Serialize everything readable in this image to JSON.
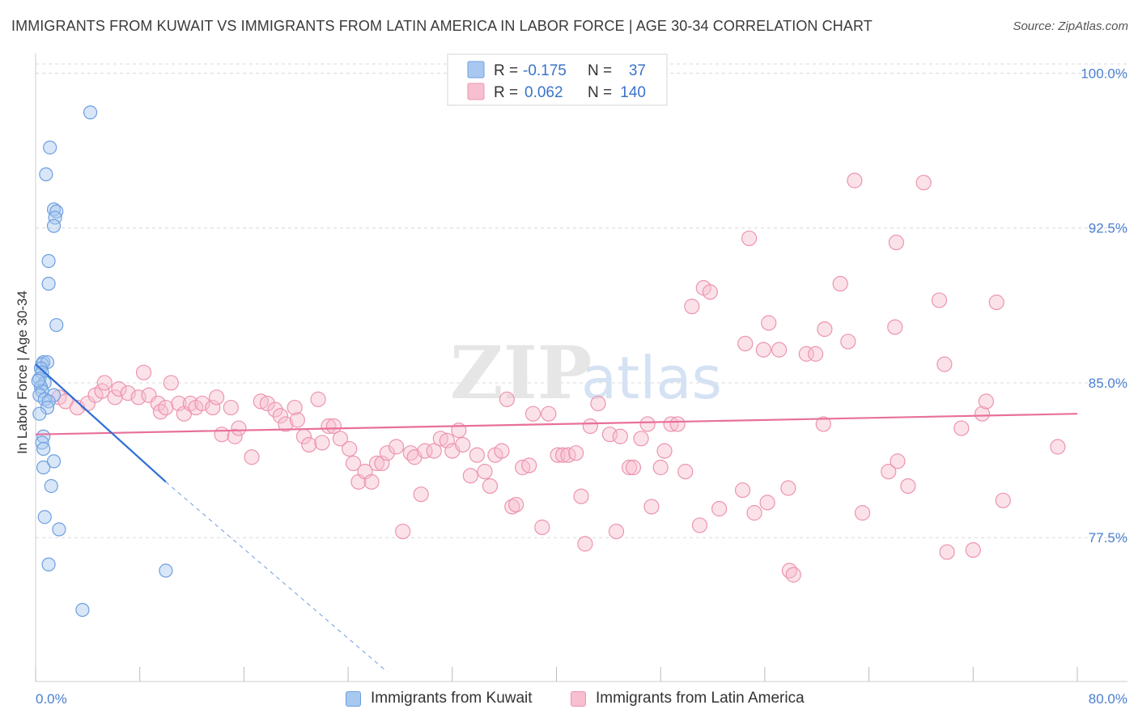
{
  "title": "IMMIGRANTS FROM KUWAIT VS IMMIGRANTS FROM LATIN AMERICA IN LABOR FORCE | AGE 30-34 CORRELATION CHART",
  "source": "Source: ZipAtlas.com",
  "watermark": {
    "zip": "ZIP",
    "atlas": "atlas"
  },
  "colors": {
    "kuwait_fill": "#a9c8f0",
    "kuwait_stroke": "#6c9fe0",
    "kuwait_line": "#2f6fd4",
    "latam_fill": "#f7bfcf",
    "latam_stroke": "#ec94ae",
    "latam_line": "#e8709a",
    "grid": "#d8d8d8",
    "axis_text": "#4a7fd0"
  },
  "legend": {
    "kuwait": {
      "r_label": "R = ",
      "r_value": "-0.175",
      "n_label": "N = ",
      "n_value": "37"
    },
    "latam": {
      "r_label": "R = ",
      "r_value": "0.062",
      "n_label": "N = ",
      "n_value": "140"
    }
  },
  "bottom_legend": {
    "kuwait": "Immigrants from Kuwait",
    "latam": "Immigrants from Latin America"
  },
  "chart_data": {
    "type": "scatter",
    "title": "IMMIGRANTS FROM KUWAIT VS IMMIGRANTS FROM LATIN AMERICA IN LABOR FORCE | AGE 30-34 CORRELATION CHART",
    "xlabel": "",
    "ylabel": "In Labor Force | Age 30-34",
    "xlim": [
      0,
      80
    ],
    "ylim": [
      71.0,
      100.8
    ],
    "x_tick_labels": {
      "min": "0.0%",
      "max": "80.0%"
    },
    "y_ticks": [
      {
        "value": 100.0,
        "label": "100.0%"
      },
      {
        "value": 92.5,
        "label": "92.5%"
      },
      {
        "value": 85.0,
        "label": "85.0%"
      },
      {
        "value": 77.5,
        "label": "77.5%"
      }
    ],
    "grid": true,
    "series": [
      {
        "name": "Immigrants from Kuwait",
        "r": -0.175,
        "n": 37,
        "trend": {
          "x0": 0.0,
          "y0": 85.9,
          "x1": 10.0,
          "y1": 80.2,
          "dashed_x1": 27.0,
          "dashed_y1": 71.0
        },
        "points": [
          [
            4.2,
            98.1
          ],
          [
            1.1,
            96.4
          ],
          [
            0.8,
            95.1
          ],
          [
            1.4,
            93.4
          ],
          [
            1.6,
            93.3
          ],
          [
            1.5,
            93.0
          ],
          [
            1.4,
            92.6
          ],
          [
            1.0,
            90.9
          ],
          [
            1.0,
            89.8
          ],
          [
            1.6,
            87.8
          ],
          [
            0.6,
            86.0
          ],
          [
            0.5,
            85.9
          ],
          [
            0.9,
            86.0
          ],
          [
            0.4,
            85.7
          ],
          [
            0.5,
            85.5
          ],
          [
            0.3,
            85.2
          ],
          [
            0.7,
            85.0
          ],
          [
            0.4,
            84.8
          ],
          [
            0.5,
            84.6
          ],
          [
            0.3,
            84.4
          ],
          [
            1.4,
            84.4
          ],
          [
            0.7,
            84.2
          ],
          [
            1.0,
            84.1
          ],
          [
            0.9,
            83.8
          ],
          [
            0.6,
            82.4
          ],
          [
            0.5,
            82.1
          ],
          [
            0.6,
            81.8
          ],
          [
            1.4,
            81.2
          ],
          [
            0.6,
            80.9
          ],
          [
            1.2,
            80.0
          ],
          [
            0.7,
            78.5
          ],
          [
            1.8,
            77.9
          ],
          [
            1.0,
            76.2
          ],
          [
            10.0,
            75.9
          ],
          [
            3.6,
            74.0
          ],
          [
            0.3,
            83.5
          ],
          [
            0.2,
            85.1
          ]
        ]
      },
      {
        "name": "Immigrants from Latin America",
        "r": 0.062,
        "n": 140,
        "trend": {
          "x0": 0.0,
          "y0": 82.5,
          "x1": 80.0,
          "y1": 83.5
        },
        "points": [
          [
            62.9,
            94.8
          ],
          [
            68.2,
            94.7
          ],
          [
            54.8,
            92.0
          ],
          [
            66.1,
            91.8
          ],
          [
            51.3,
            89.6
          ],
          [
            51.8,
            89.4
          ],
          [
            61.8,
            89.8
          ],
          [
            50.4,
            88.7
          ],
          [
            69.4,
            89.0
          ],
          [
            73.8,
            88.9
          ],
          [
            56.3,
            87.9
          ],
          [
            60.6,
            87.6
          ],
          [
            66.0,
            87.7
          ],
          [
            54.5,
            86.9
          ],
          [
            55.9,
            86.6
          ],
          [
            57.1,
            86.6
          ],
          [
            59.2,
            86.4
          ],
          [
            59.9,
            86.4
          ],
          [
            62.4,
            87.0
          ],
          [
            69.8,
            85.9
          ],
          [
            1.8,
            84.3
          ],
          [
            2.3,
            84.1
          ],
          [
            3.2,
            83.8
          ],
          [
            4.0,
            84.0
          ],
          [
            4.6,
            84.4
          ],
          [
            5.1,
            84.6
          ],
          [
            5.3,
            85.0
          ],
          [
            6.1,
            84.3
          ],
          [
            6.4,
            84.7
          ],
          [
            7.1,
            84.5
          ],
          [
            8.3,
            85.5
          ],
          [
            7.9,
            84.3
          ],
          [
            8.7,
            84.4
          ],
          [
            9.4,
            84.0
          ],
          [
            9.6,
            83.6
          ],
          [
            10.0,
            83.8
          ],
          [
            10.4,
            85.0
          ],
          [
            11.0,
            84.0
          ],
          [
            11.4,
            83.5
          ],
          [
            11.9,
            84.0
          ],
          [
            12.3,
            83.8
          ],
          [
            12.8,
            84.0
          ],
          [
            13.6,
            83.8
          ],
          [
            13.9,
            84.3
          ],
          [
            14.3,
            82.5
          ],
          [
            15.0,
            83.8
          ],
          [
            15.3,
            82.4
          ],
          [
            15.6,
            82.8
          ],
          [
            16.6,
            81.4
          ],
          [
            17.3,
            84.1
          ],
          [
            17.8,
            84.0
          ],
          [
            18.4,
            83.7
          ],
          [
            18.8,
            83.4
          ],
          [
            19.2,
            83.0
          ],
          [
            19.9,
            83.8
          ],
          [
            20.1,
            83.2
          ],
          [
            20.6,
            82.4
          ],
          [
            21.0,
            82.0
          ],
          [
            21.7,
            84.2
          ],
          [
            22.0,
            82.1
          ],
          [
            22.5,
            82.9
          ],
          [
            22.9,
            82.9
          ],
          [
            23.4,
            82.3
          ],
          [
            24.1,
            81.8
          ],
          [
            24.4,
            81.1
          ],
          [
            24.8,
            80.2
          ],
          [
            25.3,
            80.7
          ],
          [
            25.8,
            80.2
          ],
          [
            26.2,
            81.1
          ],
          [
            26.6,
            81.1
          ],
          [
            27.0,
            81.6
          ],
          [
            27.7,
            81.9
          ],
          [
            28.2,
            77.8
          ],
          [
            28.8,
            81.6
          ],
          [
            29.1,
            81.4
          ],
          [
            29.6,
            79.6
          ],
          [
            29.9,
            81.7
          ],
          [
            30.6,
            81.7
          ],
          [
            31.1,
            82.3
          ],
          [
            31.6,
            82.2
          ],
          [
            32.0,
            81.7
          ],
          [
            32.5,
            82.7
          ],
          [
            32.8,
            82.0
          ],
          [
            33.4,
            80.5
          ],
          [
            33.9,
            81.5
          ],
          [
            34.5,
            80.7
          ],
          [
            34.9,
            80.0
          ],
          [
            35.3,
            81.5
          ],
          [
            35.8,
            81.7
          ],
          [
            36.2,
            84.2
          ],
          [
            36.6,
            79.0
          ],
          [
            36.9,
            79.1
          ],
          [
            37.4,
            80.9
          ],
          [
            37.9,
            81.0
          ],
          [
            38.2,
            83.5
          ],
          [
            38.9,
            78.0
          ],
          [
            39.4,
            83.5
          ],
          [
            40.1,
            81.5
          ],
          [
            40.5,
            81.5
          ],
          [
            40.9,
            81.5
          ],
          [
            41.5,
            81.6
          ],
          [
            41.9,
            79.5
          ],
          [
            42.2,
            77.2
          ],
          [
            42.6,
            82.9
          ],
          [
            43.2,
            84.0
          ],
          [
            44.1,
            82.5
          ],
          [
            44.6,
            77.8
          ],
          [
            44.9,
            82.4
          ],
          [
            45.6,
            80.9
          ],
          [
            45.9,
            80.9
          ],
          [
            46.5,
            82.3
          ],
          [
            47.0,
            83.0
          ],
          [
            47.3,
            79.0
          ],
          [
            48.0,
            80.9
          ],
          [
            48.3,
            81.7
          ],
          [
            48.8,
            83.0
          ],
          [
            49.3,
            83.0
          ],
          [
            49.9,
            80.7
          ],
          [
            51.0,
            78.1
          ],
          [
            52.5,
            78.9
          ],
          [
            54.3,
            79.8
          ],
          [
            55.2,
            78.7
          ],
          [
            56.2,
            79.2
          ],
          [
            57.9,
            75.9
          ],
          [
            58.2,
            75.7
          ],
          [
            57.8,
            79.9
          ],
          [
            60.5,
            83.0
          ],
          [
            63.5,
            78.7
          ],
          [
            65.5,
            80.7
          ],
          [
            66.2,
            81.2
          ],
          [
            67.0,
            80.0
          ],
          [
            71.1,
            82.8
          ],
          [
            72.7,
            83.5
          ],
          [
            73.0,
            84.1
          ],
          [
            72.0,
            76.9
          ],
          [
            74.3,
            79.3
          ],
          [
            78.5,
            81.9
          ],
          [
            70.0,
            76.8
          ]
        ]
      }
    ]
  }
}
